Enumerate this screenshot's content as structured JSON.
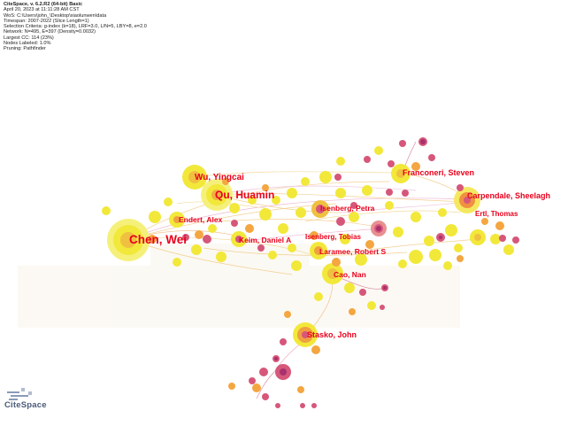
{
  "header": {
    "app_version": "CiteSpace, v. 6.2.R2 (64-bit) Basic",
    "datetime": "April 20, 2023 at 11:11:28 AM CST",
    "wos": "WoS: C:\\Users\\john_\\Desktop\\xiaolunwen\\data",
    "timespan": "Timespan: 2007-2022 (Slice Length=1)",
    "selection": "Selection Criteria: g-index (k=18), LRF=3.0, L/N=5, LBY=8, e=2.0",
    "network": "Network: N=495, E=397 (Density=0.0032)",
    "largest_cc": "Largest CC: 114 (23%)",
    "nodes_labeled": "Nodes Labeled: 1.0%",
    "pruning": "Pruning: Pathfinder"
  },
  "labels": {
    "chen_wei": "Chen, Wei",
    "qu_huamin": "Qu, Huamin",
    "wu_yingcai": "Wu, Yingcai",
    "endert_alex": "Endert, Alex",
    "keim_daniel": "Keim, Daniel A",
    "isenberg_petra": "Isenberg, Petra",
    "isenberg_tobias": "Isenberg, Tobias",
    "laramee_robert": "Laramee, Robert S",
    "cao_nan": "Cao, Nan",
    "franconeri_steven": "Franconeri, Steven",
    "carpendale_sheelagh": "Carpendale, Sheelagh",
    "ertl_thomas": "Ertl, Thomas",
    "stasko_john": "Stasko, John"
  },
  "logo": {
    "text": "CiteSpace"
  },
  "colors": {
    "label": "#e8001c",
    "node_yellow": "#f2e83a",
    "node_orange": "#f4a640",
    "node_pink": "#d6577a",
    "node_purple": "#a8306e",
    "edge": "#e0b070"
  }
}
